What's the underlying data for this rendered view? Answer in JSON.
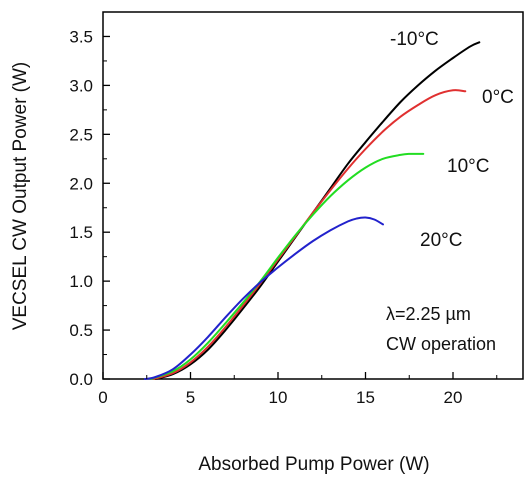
{
  "chart_data": {
    "type": "line",
    "xlabel": "Absorbed Pump Power (W)",
    "ylabel": "VECSEL CW Output Power (W)",
    "xlim": [
      0,
      24
    ],
    "ylim": [
      0,
      3.75
    ],
    "x_ticks": [
      0,
      5,
      10,
      15,
      20
    ],
    "y_ticks": [
      0.0,
      0.5,
      1.0,
      1.5,
      2.0,
      2.5,
      3.0,
      3.5
    ],
    "x_tick_labels": [
      "0",
      "5",
      "10",
      "15",
      "20"
    ],
    "y_tick_labels": [
      "0.0",
      "0.5",
      "1.0",
      "1.5",
      "2.0",
      "2.5",
      "3.0",
      "3.5"
    ],
    "grid": false,
    "annotation": [
      "λ=2.25 µm",
      "CW operation"
    ],
    "series": [
      {
        "name": "-10°C",
        "color": "#000000",
        "x": [
          3.0,
          4.0,
          5.0,
          6.0,
          7.0,
          8.0,
          9.0,
          10.0,
          11.0,
          12.0,
          13.0,
          14.0,
          15.0,
          16.0,
          17.0,
          18.0,
          19.0,
          20.0,
          21.0,
          21.5
        ],
        "y": [
          0.0,
          0.05,
          0.15,
          0.3,
          0.5,
          0.72,
          0.95,
          1.2,
          1.45,
          1.7,
          1.95,
          2.2,
          2.42,
          2.63,
          2.83,
          3.0,
          3.15,
          3.28,
          3.4,
          3.44
        ]
      },
      {
        "name": "0°C",
        "color": "#e03030",
        "x": [
          2.9,
          4.0,
          5.0,
          6.0,
          7.0,
          8.0,
          9.0,
          10.0,
          11.0,
          12.0,
          13.0,
          14.0,
          15.0,
          16.0,
          17.0,
          18.0,
          19.0,
          20.0,
          20.7
        ],
        "y": [
          0.0,
          0.06,
          0.17,
          0.33,
          0.53,
          0.75,
          0.98,
          1.22,
          1.46,
          1.7,
          1.93,
          2.15,
          2.35,
          2.53,
          2.68,
          2.8,
          2.9,
          2.95,
          2.94
        ]
      },
      {
        "name": "10°C",
        "color": "#22dd22",
        "x": [
          2.7,
          4.0,
          5.0,
          6.0,
          7.0,
          8.0,
          9.0,
          10.0,
          11.0,
          12.0,
          13.0,
          14.0,
          15.0,
          16.0,
          17.0,
          17.5,
          18.3
        ],
        "y": [
          0.0,
          0.08,
          0.2,
          0.37,
          0.57,
          0.78,
          1.0,
          1.24,
          1.47,
          1.68,
          1.87,
          2.03,
          2.16,
          2.25,
          2.29,
          2.3,
          2.3
        ]
      },
      {
        "name": "20°C",
        "color": "#2222cc",
        "x": [
          2.4,
          3.0,
          4.0,
          5.0,
          6.0,
          7.0,
          8.0,
          9.0,
          10.0,
          11.0,
          12.0,
          13.0,
          14.0,
          14.5,
          15.0,
          15.5,
          16.0
        ],
        "y": [
          0.0,
          0.02,
          0.1,
          0.25,
          0.43,
          0.63,
          0.82,
          0.99,
          1.14,
          1.28,
          1.41,
          1.52,
          1.61,
          1.64,
          1.65,
          1.63,
          1.58
        ]
      }
    ]
  }
}
